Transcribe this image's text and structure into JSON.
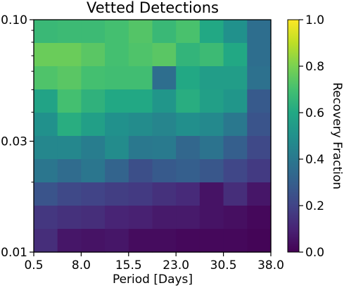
{
  "chart_data": {
    "type": "heatmap",
    "title": "Vetted Detections",
    "xlabel": "Period [Days]",
    "ylabel": "",
    "colorbar_label": "Recovery Fraction",
    "colormap": "viridis",
    "x_range": [
      0.5,
      38.0
    ],
    "y_range": [
      0.01,
      0.1
    ],
    "y_scale": "log",
    "x_ticks": [
      0.5,
      8.0,
      15.5,
      23.0,
      30.5,
      38.0
    ],
    "x_tick_labels": [
      "0.5",
      "8.0",
      "15.5",
      "23.0",
      "30.5",
      "38.0"
    ],
    "y_ticks": [
      0.01,
      0.03,
      0.1
    ],
    "y_tick_labels": [
      "0.01",
      "0.03",
      "0.10"
    ],
    "colorbar_range": [
      0.0,
      1.0
    ],
    "colorbar_ticks": [
      0.0,
      0.2,
      0.4,
      0.6,
      0.8,
      1.0
    ],
    "colorbar_tick_labels": [
      "0.0",
      "0.2",
      "0.4",
      "0.6",
      "0.8",
      "1.0"
    ],
    "n_cols": 10,
    "n_rows": 10,
    "values_top_to_bottom": [
      [
        0.67,
        0.68,
        0.68,
        0.7,
        0.73,
        0.67,
        0.71,
        0.6,
        0.5,
        0.36
      ],
      [
        0.77,
        0.77,
        0.74,
        0.7,
        0.72,
        0.74,
        0.65,
        0.68,
        0.6,
        0.36
      ],
      [
        0.72,
        0.74,
        0.7,
        0.69,
        0.69,
        0.36,
        0.6,
        0.55,
        0.55,
        0.37
      ],
      [
        0.58,
        0.7,
        0.64,
        0.6,
        0.6,
        0.52,
        0.62,
        0.56,
        0.52,
        0.28
      ],
      [
        0.5,
        0.62,
        0.56,
        0.5,
        0.48,
        0.45,
        0.49,
        0.47,
        0.4,
        0.26
      ],
      [
        0.46,
        0.46,
        0.42,
        0.48,
        0.4,
        0.41,
        0.33,
        0.38,
        0.3,
        0.22
      ],
      [
        0.39,
        0.35,
        0.39,
        0.32,
        0.24,
        0.28,
        0.3,
        0.27,
        0.21,
        0.17
      ],
      [
        0.26,
        0.22,
        0.2,
        0.18,
        0.17,
        0.14,
        0.12,
        0.05,
        0.13,
        0.06
      ],
      [
        0.16,
        0.14,
        0.13,
        0.1,
        0.09,
        0.07,
        0.07,
        0.05,
        0.04,
        0.02
      ],
      [
        0.13,
        0.06,
        0.05,
        0.06,
        0.03,
        0.03,
        0.02,
        0.02,
        0.02,
        0.01
      ]
    ]
  }
}
